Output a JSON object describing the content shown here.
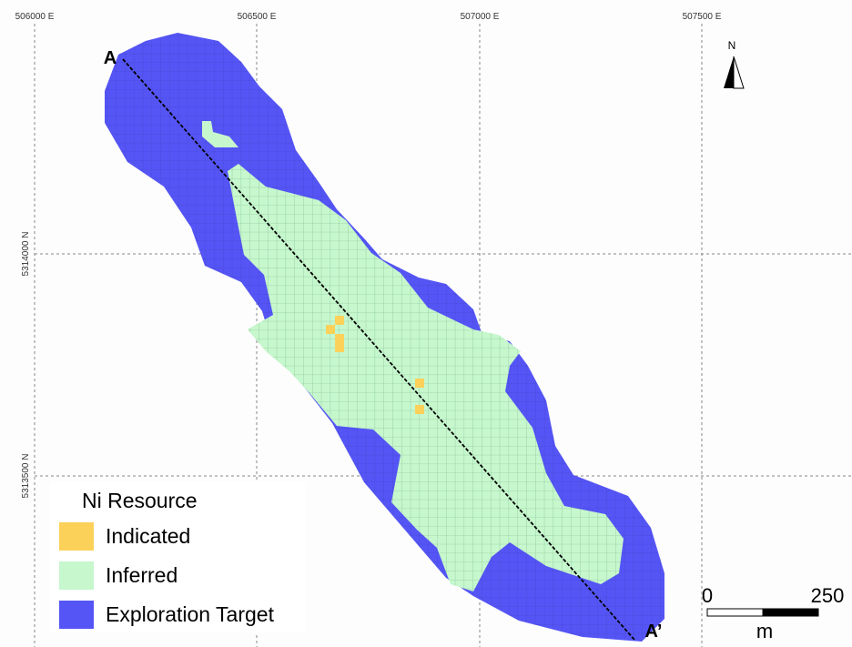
{
  "coordinates": {
    "eastings": [
      "506000 E",
      "506500 E",
      "507000 E",
      "507500 E"
    ],
    "northings": [
      "5314000 N",
      "5313500 N"
    ]
  },
  "section": {
    "start": "A",
    "end": "A’"
  },
  "north_arrow": "N",
  "legend": {
    "title": "Ni Resource",
    "items": [
      "Indicated",
      "Inferred",
      "Exploration Target"
    ]
  },
  "scale_bar": {
    "labels": [
      "0",
      "250"
    ],
    "unit": "m"
  }
}
